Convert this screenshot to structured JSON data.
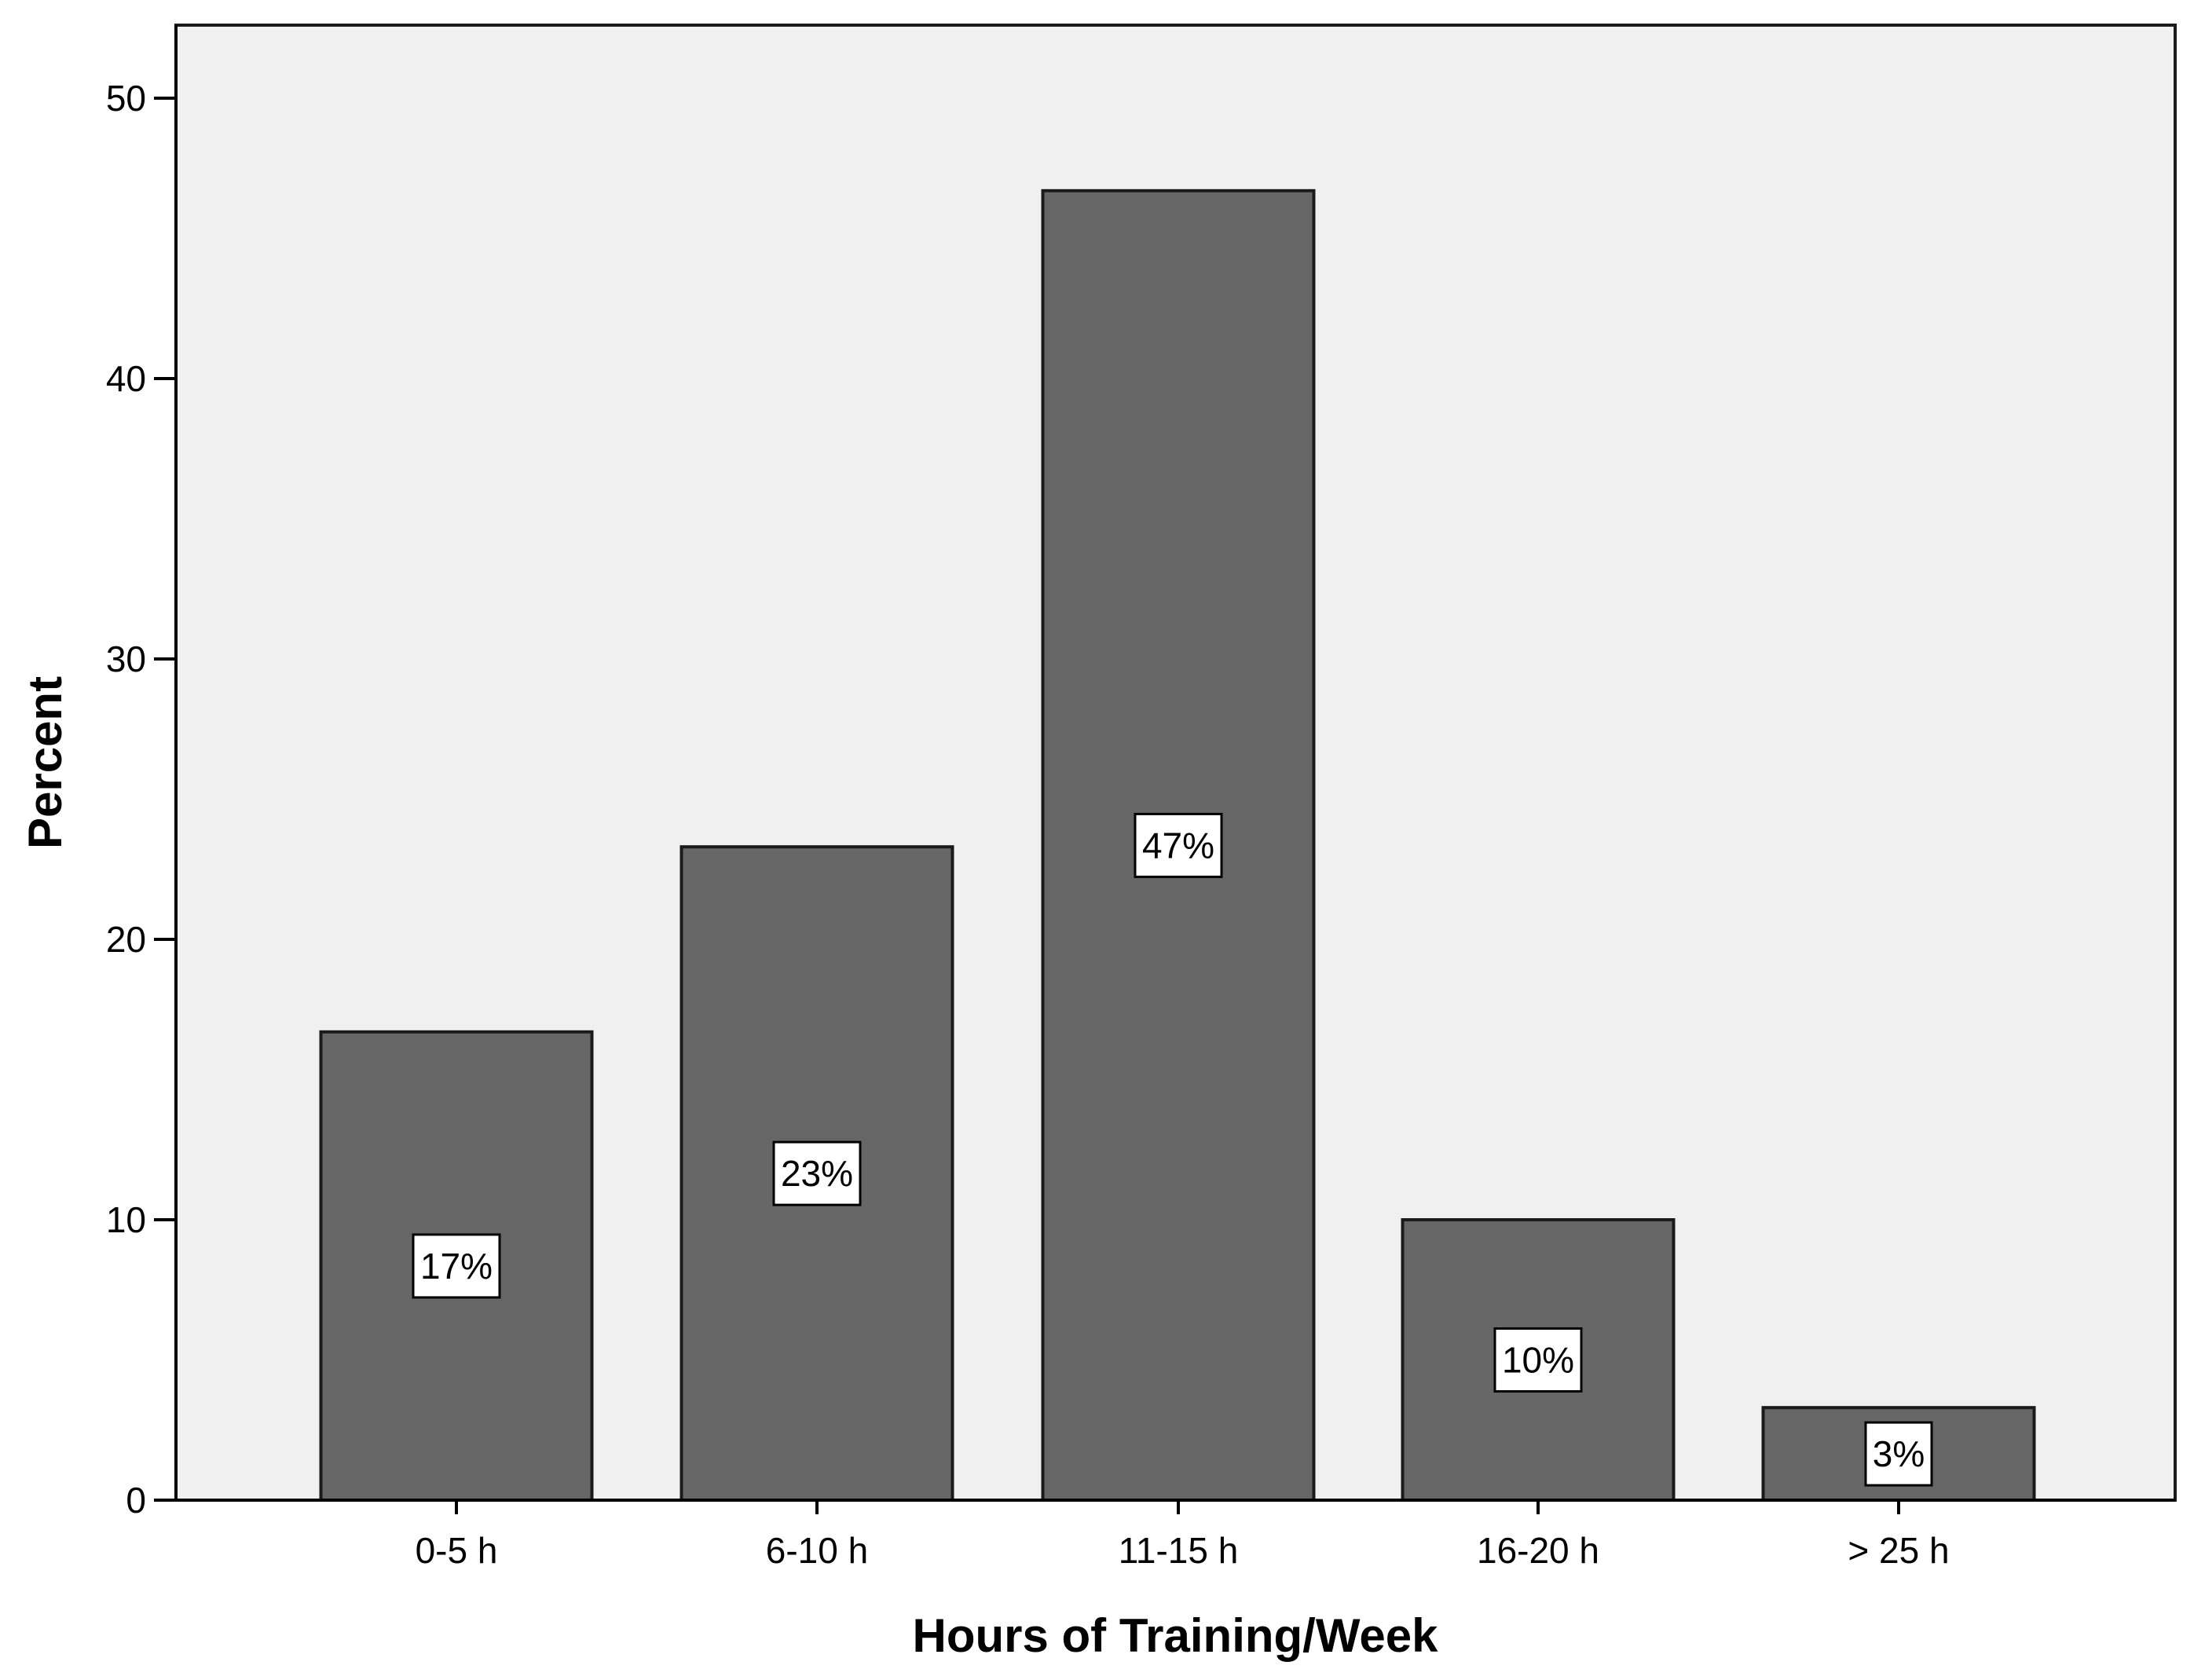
{
  "chart_data": {
    "type": "bar",
    "title": "",
    "xlabel": "Hours of Training/Week",
    "ylabel": "Percent",
    "categories": [
      "0-5 h",
      "6-10 h",
      "11-15 h",
      "16-20 h",
      "> 25 h"
    ],
    "values": [
      16.7,
      23.3,
      46.7,
      10.0,
      3.3
    ],
    "data_labels": [
      "17%",
      "23%",
      "47%",
      "10%",
      "3%"
    ],
    "ylim": [
      0,
      52.7
    ],
    "yticks": [
      0,
      10,
      20,
      30,
      40,
      50
    ],
    "grid": false,
    "legend": "none",
    "colors": {
      "bar_fill": "#666666",
      "bar_stroke": "#1a1a1a",
      "plot_background": "#f0f0f0",
      "label_box": "#ffffff"
    }
  }
}
